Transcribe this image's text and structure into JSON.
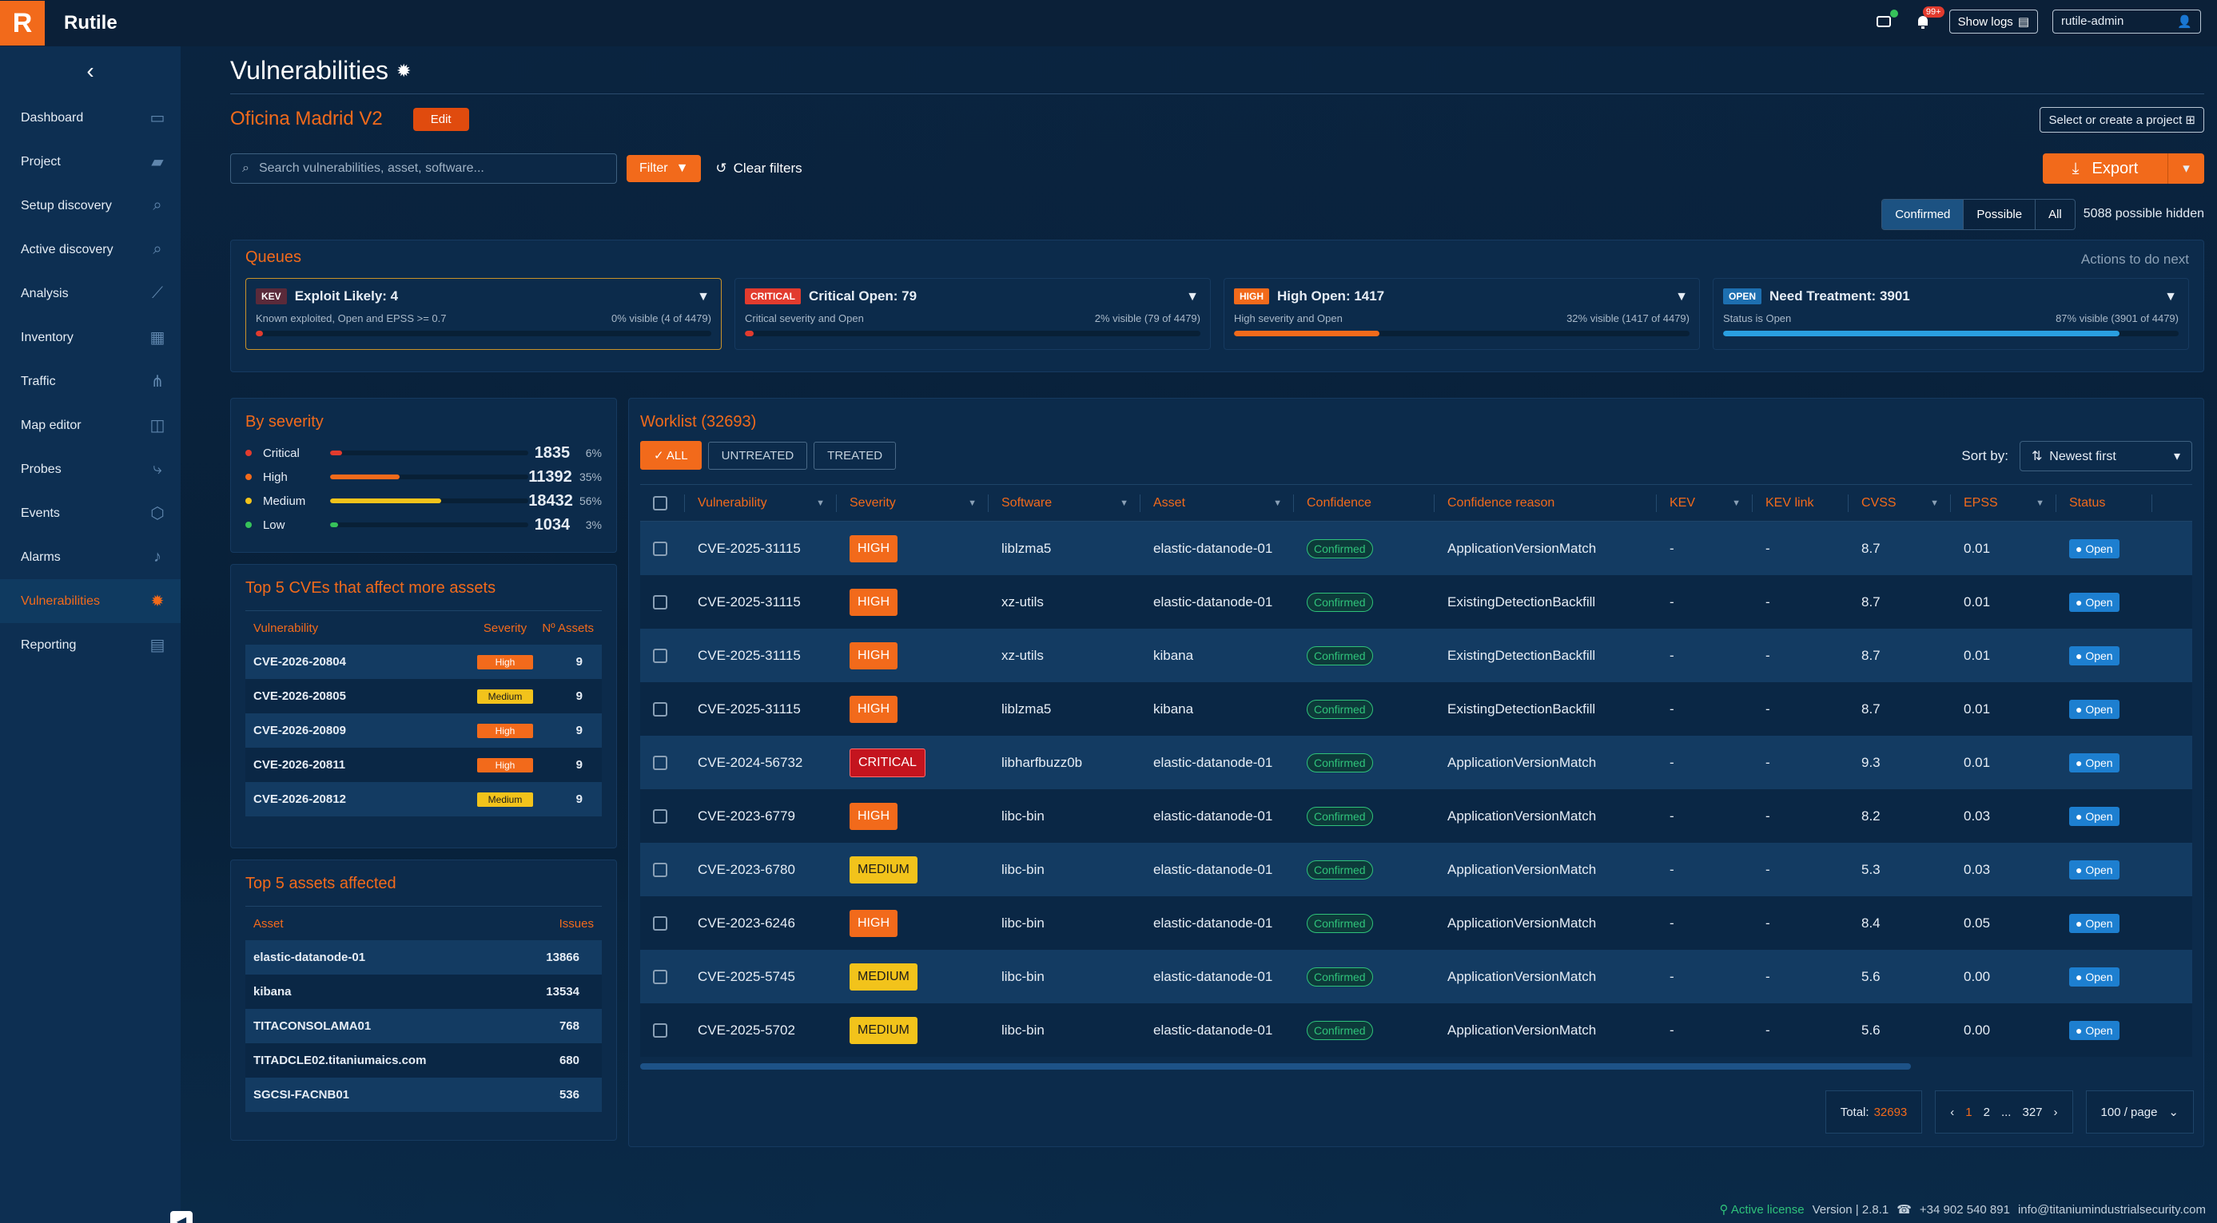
{
  "app": {
    "name": "Rutile",
    "logo_letter": "R"
  },
  "topbar": {
    "alarm_badge": "99+",
    "show_logs": "Show logs",
    "user": "rutile-admin"
  },
  "sidebar": {
    "items": [
      {
        "label": "Dashboard",
        "icon": "monitor-icon"
      },
      {
        "label": "Project",
        "icon": "folder-icon"
      },
      {
        "label": "Setup discovery",
        "icon": "search-icon"
      },
      {
        "label": "Active discovery",
        "icon": "search-icon"
      },
      {
        "label": "Analysis",
        "icon": "chart-icon"
      },
      {
        "label": "Inventory",
        "icon": "boxes-icon"
      },
      {
        "label": "Traffic",
        "icon": "network-icon"
      },
      {
        "label": "Map editor",
        "icon": "map-icon"
      },
      {
        "label": "Probes",
        "icon": "route-icon"
      },
      {
        "label": "Events",
        "icon": "cube-icon"
      },
      {
        "label": "Alarms",
        "icon": "bell-icon"
      },
      {
        "label": "Vulnerabilities",
        "icon": "bug-icon",
        "active": true
      },
      {
        "label": "Reporting",
        "icon": "document-icon"
      }
    ]
  },
  "page": {
    "title": "Vulnerabilities",
    "project_name": "Oficina Madrid V2",
    "edit_label": "Edit",
    "select_project": "Select or create a project"
  },
  "filters": {
    "search_placeholder": "Search vulnerabilities, asset, software...",
    "filter_label": "Filter",
    "clear_label": "Clear filters",
    "export_label": "Export"
  },
  "visibility": {
    "options": [
      "Confirmed",
      "Possible",
      "All"
    ],
    "selected": "Confirmed",
    "hidden_text": "5088 possible hidden"
  },
  "queues": {
    "title": "Queues",
    "actions": "Actions to do next",
    "cards": [
      {
        "tag": "KEV",
        "tag_color": "#5a2a3a",
        "title": "Exploit Likely: 4",
        "desc": "Known exploited, Open and EPSS >= 0.7",
        "visible": "0% visible (4 of 4479)",
        "fill": 0.0,
        "color": "#e23b2e"
      },
      {
        "tag": "CRITICAL",
        "tag_color": "#e23b2e",
        "title": "Critical Open: 79",
        "desc": "Critical severity and Open",
        "visible": "2% visible (79 of 4479)",
        "fill": 0.02,
        "color": "#e23b2e"
      },
      {
        "tag": "HIGH",
        "tag_color": "#f26a1b",
        "title": "High Open: 1417",
        "desc": "High severity and Open",
        "visible": "32% visible (1417 of 4479)",
        "fill": 0.32,
        "color": "#f26a1b"
      },
      {
        "tag": "OPEN",
        "tag_color": "#1d6fb0",
        "title": "Need Treatment: 3901",
        "desc": "Status is Open",
        "visible": "87% visible (3901 of 4479)",
        "fill": 0.87,
        "color": "#2a9fe0"
      }
    ]
  },
  "by_severity": {
    "title": "By severity",
    "rows": [
      {
        "name": "Critical",
        "value": "1835",
        "pct": "6%",
        "fill": 0.06,
        "color": "#e23b2e"
      },
      {
        "name": "High",
        "value": "11392",
        "pct": "35%",
        "fill": 0.35,
        "color": "#f26a1b"
      },
      {
        "name": "Medium",
        "value": "18432",
        "pct": "56%",
        "fill": 0.56,
        "color": "#f2c31b"
      },
      {
        "name": "Low",
        "value": "1034",
        "pct": "3%",
        "fill": 0.03,
        "color": "#36c25a"
      }
    ]
  },
  "top_cves": {
    "title": "Top 5 CVEs that affect more assets",
    "headers": [
      "Vulnerability",
      "Severity",
      "Nº Assets"
    ],
    "rows": [
      {
        "cve": "CVE-2026-20804",
        "severity": "High",
        "assets": "9"
      },
      {
        "cve": "CVE-2026-20805",
        "severity": "Medium",
        "assets": "9"
      },
      {
        "cve": "CVE-2026-20809",
        "severity": "High",
        "assets": "9"
      },
      {
        "cve": "CVE-2026-20811",
        "severity": "High",
        "assets": "9"
      },
      {
        "cve": "CVE-2026-20812",
        "severity": "Medium",
        "assets": "9"
      }
    ]
  },
  "top_assets": {
    "title": "Top 5 assets affected",
    "headers": [
      "Asset",
      "Issues"
    ],
    "rows": [
      {
        "asset": "elastic-datanode-01",
        "issues": "13866"
      },
      {
        "asset": "kibana",
        "issues": "13534"
      },
      {
        "asset": "TITACONSOLAMA01",
        "issues": "768"
      },
      {
        "asset": "TITADCLE02.titaniumaics.com",
        "issues": "680"
      },
      {
        "asset": "SGCSI-FACNB01",
        "issues": "536"
      }
    ]
  },
  "worklist": {
    "title": "Worklist (32693)",
    "tabs": [
      "✓ ALL",
      "UNTREATED",
      "TREATED"
    ],
    "sort_label": "Sort by:",
    "sort_value": "Newest first",
    "headers": [
      "Vulnerability",
      "Severity",
      "Software",
      "Asset",
      "Confidence",
      "Confidence reason",
      "KEV",
      "KEV link",
      "CVSS",
      "EPSS",
      "Status"
    ],
    "rows": [
      {
        "cve": "CVE-2025-31115",
        "severity": "HIGH",
        "software": "liblzma5",
        "asset": "elastic-datanode-01",
        "confidence": "Confirmed",
        "reason": "ApplicationVersionMatch",
        "kev": "-",
        "kevlink": "-",
        "cvss": "8.7",
        "epss": "0.01",
        "status": "Open"
      },
      {
        "cve": "CVE-2025-31115",
        "severity": "HIGH",
        "software": "xz-utils",
        "asset": "elastic-datanode-01",
        "confidence": "Confirmed",
        "reason": "ExistingDetectionBackfill",
        "kev": "-",
        "kevlink": "-",
        "cvss": "8.7",
        "epss": "0.01",
        "status": "Open"
      },
      {
        "cve": "CVE-2025-31115",
        "severity": "HIGH",
        "software": "xz-utils",
        "asset": "kibana",
        "confidence": "Confirmed",
        "reason": "ExistingDetectionBackfill",
        "kev": "-",
        "kevlink": "-",
        "cvss": "8.7",
        "epss": "0.01",
        "status": "Open"
      },
      {
        "cve": "CVE-2025-31115",
        "severity": "HIGH",
        "software": "liblzma5",
        "asset": "kibana",
        "confidence": "Confirmed",
        "reason": "ExistingDetectionBackfill",
        "kev": "-",
        "kevlink": "-",
        "cvss": "8.7",
        "epss": "0.01",
        "status": "Open"
      },
      {
        "cve": "CVE-2024-56732",
        "severity": "CRITICAL",
        "software": "libharfbuzz0b",
        "asset": "elastic-datanode-01",
        "confidence": "Confirmed",
        "reason": "ApplicationVersionMatch",
        "kev": "-",
        "kevlink": "-",
        "cvss": "9.3",
        "epss": "0.01",
        "status": "Open"
      },
      {
        "cve": "CVE-2023-6779",
        "severity": "HIGH",
        "software": "libc-bin",
        "asset": "elastic-datanode-01",
        "confidence": "Confirmed",
        "reason": "ApplicationVersionMatch",
        "kev": "-",
        "kevlink": "-",
        "cvss": "8.2",
        "epss": "0.03",
        "status": "Open"
      },
      {
        "cve": "CVE-2023-6780",
        "severity": "MEDIUM",
        "software": "libc-bin",
        "asset": "elastic-datanode-01",
        "confidence": "Confirmed",
        "reason": "ApplicationVersionMatch",
        "kev": "-",
        "kevlink": "-",
        "cvss": "5.3",
        "epss": "0.03",
        "status": "Open"
      },
      {
        "cve": "CVE-2023-6246",
        "severity": "HIGH",
        "software": "libc-bin",
        "asset": "elastic-datanode-01",
        "confidence": "Confirmed",
        "reason": "ApplicationVersionMatch",
        "kev": "-",
        "kevlink": "-",
        "cvss": "8.4",
        "epss": "0.05",
        "status": "Open"
      },
      {
        "cve": "CVE-2025-5745",
        "severity": "MEDIUM",
        "software": "libc-bin",
        "asset": "elastic-datanode-01",
        "confidence": "Confirmed",
        "reason": "ApplicationVersionMatch",
        "kev": "-",
        "kevlink": "-",
        "cvss": "5.6",
        "epss": "0.00",
        "status": "Open"
      },
      {
        "cve": "CVE-2025-5702",
        "severity": "MEDIUM",
        "software": "libc-bin",
        "asset": "elastic-datanode-01",
        "confidence": "Confirmed",
        "reason": "ApplicationVersionMatch",
        "kev": "-",
        "kevlink": "-",
        "cvss": "5.6",
        "epss": "0.00",
        "status": "Open"
      }
    ]
  },
  "pagination": {
    "total_label": "Total:",
    "total": "32693",
    "pages": [
      "1",
      "2",
      "...",
      "327"
    ],
    "current": "1",
    "per_page": "100 / page"
  },
  "footer": {
    "license": "Active license",
    "version": "Version | 2.8.1",
    "phone": "+34 902 540 891",
    "email": "info@titaniumindustrialsecurity.com"
  }
}
